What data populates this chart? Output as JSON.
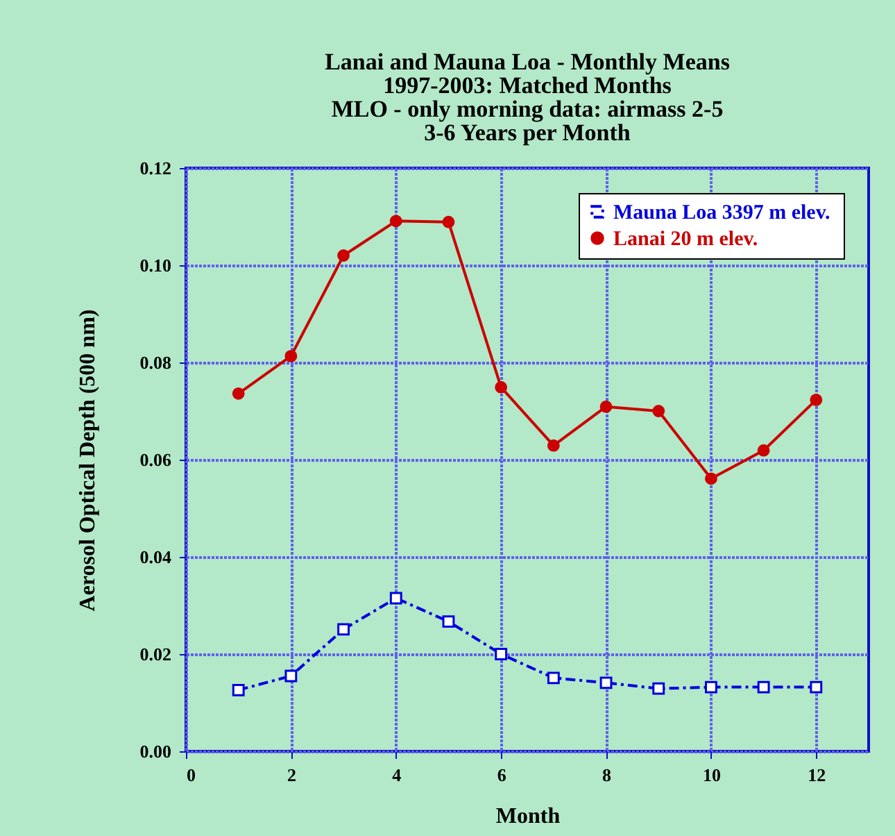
{
  "chart_data": {
    "type": "line",
    "title": "Lanai and Mauna Loa - Monthly Means\n1997-2003: Matched Months\nMLO - only morning data: airmass 2-5\n3-6 Years per Month",
    "xlabel": "Month",
    "ylabel": "Aerosol Optical Depth (500 nm)",
    "x": [
      1,
      2,
      3,
      4,
      5,
      6,
      7,
      8,
      9,
      10,
      11,
      12
    ],
    "series": [
      {
        "name": "Mauna Loa  3397 m elev.",
        "color": "#0000dd",
        "line_style": "dashed",
        "marker": "square",
        "values": [
          0.0126,
          0.0155,
          0.0251,
          0.0315,
          0.0267,
          0.02,
          0.0151,
          0.0141,
          0.0129,
          0.0132,
          0.0132,
          0.0132
        ]
      },
      {
        "name": "Lanai        20 m elev.",
        "color": "#cc0000",
        "line_style": "solid",
        "marker": "circle",
        "values": [
          0.0736,
          0.0813,
          0.102,
          0.1091,
          0.1089,
          0.0749,
          0.0629,
          0.0709,
          0.07,
          0.0561,
          0.0619,
          0.0723
        ]
      }
    ],
    "xlim": [
      0,
      13
    ],
    "xticks": [
      0,
      2,
      4,
      6,
      8,
      10,
      12
    ],
    "ylim": [
      0,
      0.12
    ],
    "yticks": [
      {
        "value": 0,
        "label": "0.00"
      },
      {
        "value": 0.02,
        "label": "0.02"
      },
      {
        "value": 0.04,
        "label": "0.04"
      },
      {
        "value": 0.06,
        "label": "0.06"
      },
      {
        "value": 0.08,
        "label": "0.08"
      },
      {
        "value": 0.1,
        "label": "0.10"
      },
      {
        "value": 0.12,
        "label": "0.12"
      }
    ],
    "grid": true,
    "legend": "top right"
  }
}
